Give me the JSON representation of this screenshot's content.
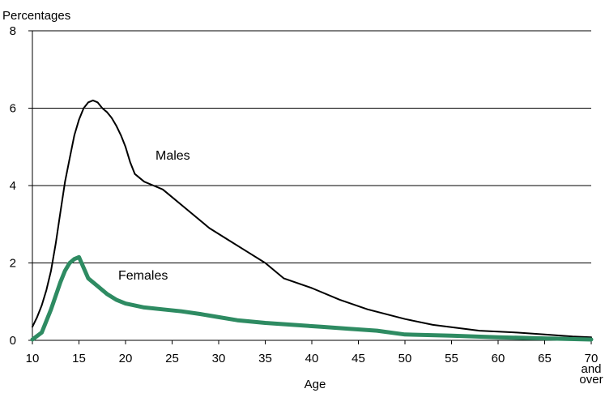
{
  "chart_data": {
    "type": "line",
    "ylabel": "Percentages",
    "xlabel": "Age",
    "ylim": [
      0,
      8
    ],
    "xlim": [
      10,
      70
    ],
    "y_ticks": [
      "0",
      "2",
      "4",
      "6",
      "8"
    ],
    "x_ticks": [
      "10",
      "15",
      "20",
      "25",
      "30",
      "35",
      "40",
      "45",
      "50",
      "55",
      "60",
      "65"
    ],
    "x_last_tick": [
      "70",
      "and",
      "over"
    ],
    "grid": "horizontal",
    "series": [
      {
        "name": "Males",
        "color": "#000000",
        "x": [
          10,
          10.5,
          11,
          11.5,
          12,
          12.5,
          13,
          13.5,
          14,
          14.5,
          15,
          15.5,
          16,
          16.5,
          17,
          17.5,
          18,
          18.5,
          19,
          19.5,
          20,
          20.5,
          21,
          22,
          23,
          24,
          25,
          27,
          29,
          31,
          33,
          35,
          37,
          40,
          43,
          46,
          50,
          53,
          58,
          62,
          65,
          68,
          70
        ],
        "values": [
          0.35,
          0.6,
          0.9,
          1.3,
          1.8,
          2.5,
          3.3,
          4.1,
          4.7,
          5.3,
          5.7,
          6.0,
          6.15,
          6.2,
          6.15,
          6.0,
          5.9,
          5.75,
          5.55,
          5.3,
          5.0,
          4.6,
          4.3,
          4.1,
          4.0,
          3.9,
          3.7,
          3.3,
          2.9,
          2.6,
          2.3,
          2.0,
          1.6,
          1.35,
          1.05,
          0.8,
          0.55,
          0.4,
          0.25,
          0.2,
          0.15,
          0.1,
          0.08
        ]
      },
      {
        "name": "Females",
        "color": "#2e8b62",
        "x": [
          10,
          11,
          12,
          13,
          13.5,
          14,
          14.5,
          15,
          16,
          17,
          18,
          19,
          20,
          22,
          24,
          26,
          28,
          30,
          32,
          35,
          38,
          41,
          44,
          47,
          50,
          55,
          60,
          65,
          70
        ],
        "values": [
          0.02,
          0.2,
          0.8,
          1.5,
          1.8,
          2.0,
          2.1,
          2.15,
          1.6,
          1.4,
          1.2,
          1.05,
          0.95,
          0.85,
          0.8,
          0.75,
          0.68,
          0.6,
          0.52,
          0.45,
          0.4,
          0.35,
          0.3,
          0.25,
          0.15,
          0.12,
          0.08,
          0.05,
          0.02
        ]
      }
    ],
    "annotations": [
      "Males",
      "Females"
    ]
  }
}
